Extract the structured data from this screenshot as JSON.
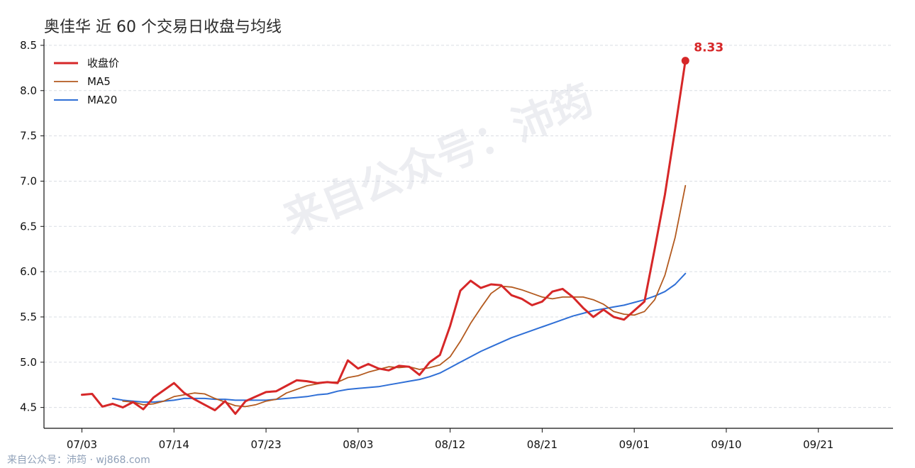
{
  "footer": {
    "text": "来自公众号：沛筠 · wj868.com"
  },
  "watermark": {
    "text": "来自公众号：沛筠"
  },
  "chart_data": {
    "type": "line",
    "title": "奥佳华 近 60 个交易日收盘与均线",
    "xlabel": "",
    "ylabel": "",
    "ylim": [
      4.27,
      8.57
    ],
    "yticks": [
      "4.5",
      "5.0",
      "5.5",
      "6.0",
      "6.5",
      "7.0",
      "7.5",
      "8.0",
      "8.5"
    ],
    "xticks": [
      {
        "index": 0,
        "label": "07/03"
      },
      {
        "index": 9,
        "label": "07/14"
      },
      {
        "index": 18,
        "label": "07/23"
      },
      {
        "index": 27,
        "label": "08/03"
      },
      {
        "index": 36,
        "label": "08/12"
      },
      {
        "index": 45,
        "label": "08/21"
      },
      {
        "index": 54,
        "label": "09/01"
      },
      {
        "index": 63,
        "label": "09/10"
      },
      {
        "index": 72,
        "label": "09/21"
      }
    ],
    "grid": "horizontal dashed",
    "legend_position": "top-left",
    "last_value_label": "8.33",
    "colors": {
      "close": "#d62728",
      "ma5": "#b35a1f",
      "ma20": "#2f6fd6"
    },
    "series": [
      {
        "name": "收盘价",
        "key": "close",
        "values": [
          4.64,
          4.65,
          4.51,
          4.54,
          4.5,
          4.56,
          4.48,
          4.61,
          4.69,
          4.77,
          4.66,
          4.59,
          4.53,
          4.47,
          4.57,
          4.43,
          4.57,
          4.62,
          4.67,
          4.68,
          4.74,
          4.8,
          4.79,
          4.77,
          4.78,
          4.77,
          5.02,
          4.93,
          4.98,
          4.93,
          4.91,
          4.96,
          4.95,
          4.86,
          5.0,
          5.08,
          5.4,
          5.79,
          5.9,
          5.82,
          5.86,
          5.85,
          5.74,
          5.7,
          5.63,
          5.67,
          5.78,
          5.81,
          5.72,
          5.6,
          5.5,
          5.58,
          5.5,
          5.47,
          5.57,
          5.67,
          6.25,
          6.85,
          7.58,
          8.33
        ]
      },
      {
        "name": "MA5",
        "key": "ma5",
        "values": [
          null,
          null,
          null,
          null,
          4.57,
          4.56,
          4.53,
          4.54,
          4.57,
          4.62,
          4.64,
          4.66,
          4.65,
          4.6,
          4.56,
          4.52,
          4.51,
          4.53,
          4.57,
          4.59,
          4.66,
          4.7,
          4.74,
          4.76,
          4.78,
          4.78,
          4.83,
          4.85,
          4.89,
          4.92,
          4.95,
          4.94,
          4.95,
          4.92,
          4.94,
          4.97,
          5.06,
          5.23,
          5.43,
          5.6,
          5.76,
          5.84,
          5.83,
          5.8,
          5.76,
          5.72,
          5.7,
          5.72,
          5.72,
          5.72,
          5.69,
          5.64,
          5.56,
          5.53,
          5.52,
          5.56,
          5.69,
          5.96,
          6.38,
          6.95
        ]
      },
      {
        "name": "MA20",
        "key": "ma20",
        "values": [
          null,
          null,
          null,
          4.6,
          4.58,
          4.57,
          4.56,
          4.56,
          4.57,
          4.58,
          4.6,
          4.6,
          4.6,
          4.59,
          4.59,
          4.58,
          4.58,
          4.58,
          4.58,
          4.59,
          4.6,
          4.61,
          4.62,
          4.64,
          4.65,
          4.68,
          4.7,
          4.71,
          4.72,
          4.73,
          4.75,
          4.77,
          4.79,
          4.81,
          4.84,
          4.88,
          4.94,
          5.0,
          5.06,
          5.12,
          5.17,
          5.22,
          5.27,
          5.31,
          5.35,
          5.39,
          5.43,
          5.47,
          5.51,
          5.54,
          5.57,
          5.59,
          5.61,
          5.63,
          5.66,
          5.69,
          5.73,
          5.78,
          5.86,
          5.98
        ]
      }
    ]
  }
}
